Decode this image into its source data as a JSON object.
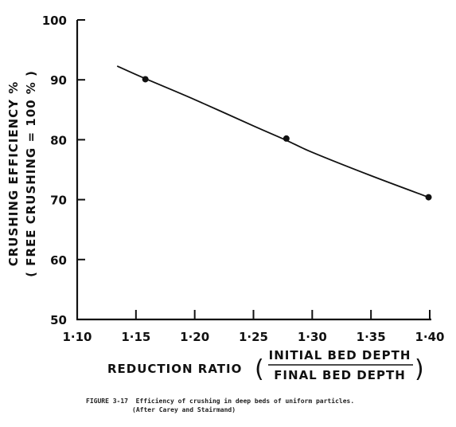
{
  "chart_data": {
    "type": "line",
    "xlabel_main": "REDUCTION  RATIO",
    "xlabel_numerator": "INITIAL BED DEPTH",
    "xlabel_denominator": "FINAL BED DEPTH",
    "ylabel_line1": "CRUSHING  EFFICIENCY %",
    "ylabel_line2": "( FREE  CRUSHING = 100 % )",
    "xlim": [
      1.1,
      1.4
    ],
    "ylim": [
      50,
      100
    ],
    "x_ticks": [
      1.1,
      1.15,
      1.2,
      1.25,
      1.3,
      1.35,
      1.4
    ],
    "x_tick_labels": [
      "1·10",
      "1·15",
      "1·20",
      "1·25",
      "1·30",
      "1·35",
      "1·40"
    ],
    "y_ticks": [
      50,
      60,
      70,
      80,
      90,
      100
    ],
    "y_tick_labels": [
      "50",
      "60",
      "70",
      "80",
      "90",
      "100"
    ],
    "points": [
      {
        "x": 1.158,
        "y": 90.1
      },
      {
        "x": 1.278,
        "y": 80.2
      },
      {
        "x": 1.399,
        "y": 70.4
      }
    ],
    "curve": [
      {
        "x": 1.134,
        "y": 92.3
      },
      {
        "x": 1.158,
        "y": 90.2
      },
      {
        "x": 1.2,
        "y": 86.7
      },
      {
        "x": 1.25,
        "y": 82.3
      },
      {
        "x": 1.278,
        "y": 79.9
      },
      {
        "x": 1.3,
        "y": 77.9
      },
      {
        "x": 1.35,
        "y": 74.0
      },
      {
        "x": 1.399,
        "y": 70.4
      }
    ],
    "grid": false
  },
  "caption": {
    "line1": "FIGURE 3-17  Efficiency of crushing in deep beds of uniform particles.",
    "line2": "(After Carey and Stairmand)"
  }
}
